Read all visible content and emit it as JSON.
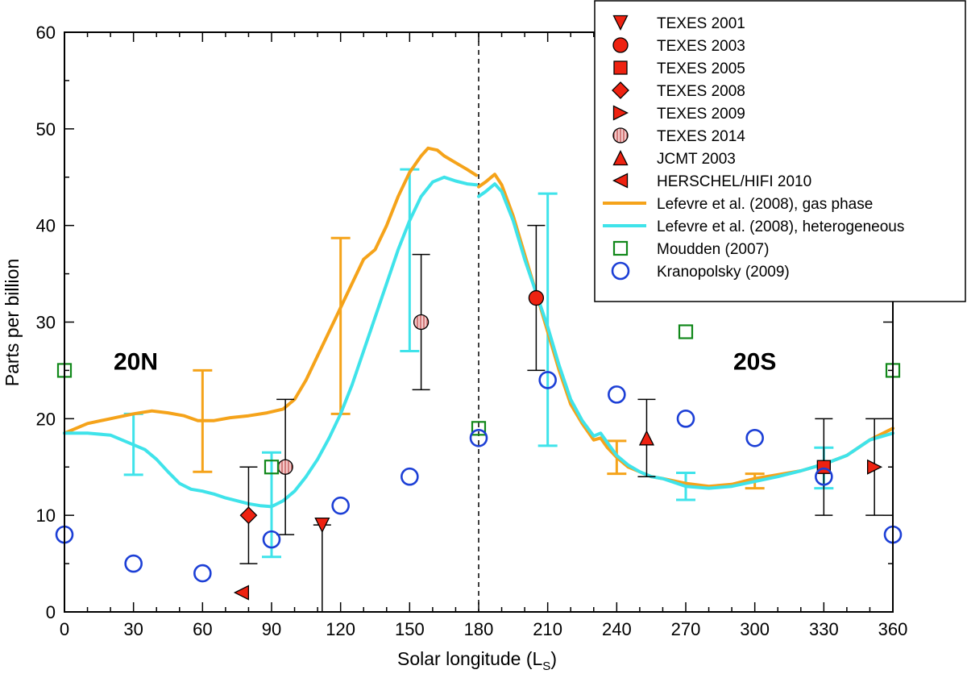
{
  "chart_data": {
    "type": "scatter",
    "xlabel": "Solar longitude (L",
    "xlabel_sub": "S",
    "xlabel_close": ")",
    "ylabel": "Parts per billion",
    "xlim": [
      0,
      360
    ],
    "ylim": [
      0,
      60
    ],
    "xticks": [
      "0",
      "30",
      "60",
      "90",
      "120",
      "150",
      "180",
      "210",
      "240",
      "270",
      "300",
      "330",
      "360"
    ],
    "yticks": [
      "0",
      "10",
      "20",
      "30",
      "40",
      "50",
      "60"
    ],
    "grid": false,
    "legend_position": "top-right",
    "divider_x": 180,
    "region_labels": [
      {
        "text": "20N",
        "x": 31,
        "y": 26
      },
      {
        "text": "20S",
        "x": 300,
        "y": 26
      }
    ],
    "colors": {
      "marker_fill": "#ee2211",
      "hatched_fill": "#f4c8c8",
      "gas_phase": "#f5a31a",
      "heterogeneous": "#3fe3ea",
      "moudden": "#11881a",
      "kranopolsky": "#1c3fd6",
      "errorbar": "#000000"
    },
    "point_series": [
      {
        "name": "TEXES 2001",
        "marker": "triangle-down",
        "points": [
          {
            "x": 112,
            "y": 9,
            "err_low": 0,
            "err_high": 9
          }
        ]
      },
      {
        "name": "TEXES 2003",
        "marker": "circle",
        "points": [
          {
            "x": 205,
            "y": 32.5,
            "err_low": 25,
            "err_high": 40
          }
        ]
      },
      {
        "name": "TEXES 2005",
        "marker": "square",
        "points": [
          {
            "x": 330,
            "y": 15,
            "err_low": 10,
            "err_high": 20
          }
        ]
      },
      {
        "name": "TEXES 2008",
        "marker": "diamond",
        "points": [
          {
            "x": 80,
            "y": 10,
            "err_low": 5,
            "err_high": 15
          }
        ]
      },
      {
        "name": "TEXES 2009",
        "marker": "triangle-right",
        "points": [
          {
            "x": 352,
            "y": 15,
            "err_low": 10,
            "err_high": 20
          }
        ]
      },
      {
        "name": "TEXES 2014",
        "marker": "circle-hatched",
        "points": [
          {
            "x": 96,
            "y": 15,
            "err_low": 8,
            "err_high": 22
          },
          {
            "x": 155,
            "y": 30,
            "err_low": 23,
            "err_high": 37
          }
        ]
      },
      {
        "name": "JCMT 2003",
        "marker": "triangle-up",
        "points": [
          {
            "x": 253,
            "y": 18,
            "err_low": 14,
            "err_high": 22
          }
        ]
      },
      {
        "name": "HERSCHEL/HIFI 2010",
        "marker": "triangle-left",
        "points": [
          {
            "x": 77,
            "y": 2
          }
        ]
      },
      {
        "name": "Moudden (2007)",
        "marker": "open-square",
        "points": [
          {
            "x": 0,
            "y": 25
          },
          {
            "x": 90,
            "y": 15
          },
          {
            "x": 180,
            "y": 19
          },
          {
            "x": 270,
            "y": 29
          },
          {
            "x": 360,
            "y": 25
          }
        ]
      },
      {
        "name": "Kranopolsky (2009)",
        "marker": "open-circle",
        "points": [
          {
            "x": 0,
            "y": 8
          },
          {
            "x": 30,
            "y": 5
          },
          {
            "x": 60,
            "y": 4
          },
          {
            "x": 90,
            "y": 7.5
          },
          {
            "x": 120,
            "y": 11
          },
          {
            "x": 150,
            "y": 14
          },
          {
            "x": 180,
            "y": 18
          },
          {
            "x": 210,
            "y": 24
          },
          {
            "x": 240,
            "y": 22.5
          },
          {
            "x": 270,
            "y": 20
          },
          {
            "x": 300,
            "y": 18
          },
          {
            "x": 330,
            "y": 14
          },
          {
            "x": 360,
            "y": 8
          }
        ]
      }
    ],
    "line_series": [
      {
        "name": "Lefevre et al. (2008), gas phase",
        "segments": [
          [
            [
              0,
              18.5
            ],
            [
              10,
              19.5
            ],
            [
              20,
              20
            ],
            [
              30,
              20.5
            ],
            [
              38,
              20.8
            ],
            [
              45,
              20.6
            ],
            [
              52,
              20.3
            ],
            [
              58,
              19.8
            ],
            [
              65,
              19.8
            ],
            [
              72,
              20.1
            ],
            [
              80,
              20.3
            ],
            [
              88,
              20.6
            ],
            [
              95,
              21
            ],
            [
              100,
              22
            ],
            [
              105,
              24
            ],
            [
              110,
              26.5
            ],
            [
              115,
              29
            ],
            [
              120,
              31.5
            ],
            [
              125,
              34
            ],
            [
              130,
              36.5
            ],
            [
              135,
              37.5
            ],
            [
              140,
              40
            ],
            [
              145,
              43
            ],
            [
              150,
              45.5
            ],
            [
              155,
              47.2
            ],
            [
              158,
              48
            ],
            [
              162,
              47.8
            ],
            [
              165,
              47.2
            ],
            [
              170,
              46.5
            ],
            [
              175,
              45.8
            ],
            [
              179,
              45.2
            ]
          ],
          [
            [
              180,
              44
            ],
            [
              183,
              44.5
            ],
            [
              187,
              45.3
            ],
            [
              190,
              44.2
            ],
            [
              195,
              41
            ],
            [
              200,
              37
            ],
            [
              205,
              33
            ],
            [
              210,
              29
            ],
            [
              215,
              25
            ],
            [
              220,
              21.5
            ],
            [
              225,
              19.5
            ],
            [
              230,
              17.8
            ],
            [
              233,
              18
            ],
            [
              236,
              17
            ],
            [
              240,
              16
            ],
            [
              245,
              15
            ],
            [
              250,
              14.5
            ],
            [
              255,
              14
            ],
            [
              260,
              13.8
            ],
            [
              270,
              13.3
            ],
            [
              280,
              13
            ],
            [
              290,
              13.2
            ],
            [
              300,
              13.8
            ],
            [
              310,
              14.2
            ],
            [
              320,
              14.6
            ],
            [
              330,
              15.3
            ],
            [
              340,
              16.2
            ],
            [
              350,
              17.8
            ],
            [
              360,
              19
            ]
          ]
        ]
      },
      {
        "name": "Lefevre et al. (2008), heterogeneous",
        "segments": [
          [
            [
              0,
              18.5
            ],
            [
              10,
              18.5
            ],
            [
              20,
              18.3
            ],
            [
              25,
              17.8
            ],
            [
              30,
              17.3
            ],
            [
              35,
              16.8
            ],
            [
              40,
              15.8
            ],
            [
              45,
              14.5
            ],
            [
              50,
              13.3
            ],
            [
              55,
              12.7
            ],
            [
              60,
              12.5
            ],
            [
              65,
              12.2
            ],
            [
              70,
              11.8
            ],
            [
              75,
              11.5
            ],
            [
              80,
              11.2
            ],
            [
              85,
              11
            ],
            [
              90,
              10.9
            ],
            [
              95,
              11.5
            ],
            [
              100,
              12.5
            ],
            [
              105,
              14
            ],
            [
              110,
              15.8
            ],
            [
              115,
              18
            ],
            [
              120,
              20.5
            ],
            [
              125,
              23.5
            ],
            [
              130,
              27
            ],
            [
              135,
              30.5
            ],
            [
              140,
              34
            ],
            [
              145,
              37.5
            ],
            [
              150,
              40.5
            ],
            [
              155,
              43
            ],
            [
              160,
              44.5
            ],
            [
              165,
              45
            ],
            [
              170,
              44.6
            ],
            [
              175,
              44.3
            ],
            [
              179,
              44.2
            ]
          ],
          [
            [
              180,
              43
            ],
            [
              183,
              43.5
            ],
            [
              187,
              44.3
            ],
            [
              190,
              43.5
            ],
            [
              195,
              40.5
            ],
            [
              200,
              36.5
            ],
            [
              205,
              33
            ],
            [
              210,
              29.5
            ],
            [
              215,
              25.5
            ],
            [
              220,
              22
            ],
            [
              225,
              19.8
            ],
            [
              230,
              18.2
            ],
            [
              233,
              18.5
            ],
            [
              236,
              17.5
            ],
            [
              240,
              16.2
            ],
            [
              245,
              15.2
            ],
            [
              250,
              14.5
            ],
            [
              255,
              14
            ],
            [
              260,
              13.8
            ],
            [
              270,
              13
            ],
            [
              280,
              12.8
            ],
            [
              290,
              13
            ],
            [
              300,
              13.5
            ],
            [
              310,
              14
            ],
            [
              320,
              14.6
            ],
            [
              330,
              15.3
            ],
            [
              340,
              16.2
            ],
            [
              350,
              17.8
            ],
            [
              360,
              18.5
            ]
          ]
        ]
      }
    ],
    "model_errorbars": [
      {
        "series": "gas_phase",
        "x": 60,
        "low": 14.5,
        "high": 25
      },
      {
        "series": "gas_phase",
        "x": 120,
        "low": 20.5,
        "high": 38.7
      },
      {
        "series": "gas_phase",
        "x": 240,
        "low": 14.3,
        "high": 17.7
      },
      {
        "series": "gas_phase",
        "x": 300,
        "low": 12.8,
        "high": 14.3
      },
      {
        "series": "heterogeneous",
        "x": 30,
        "low": 14.2,
        "high": 20.5
      },
      {
        "series": "heterogeneous",
        "x": 90,
        "low": 5.7,
        "high": 16.5
      },
      {
        "series": "heterogeneous",
        "x": 150,
        "low": 27,
        "high": 45.8
      },
      {
        "series": "heterogeneous",
        "x": 210,
        "low": 17.2,
        "high": 43.3
      },
      {
        "series": "heterogeneous",
        "x": 270,
        "low": 11.6,
        "high": 14.4
      },
      {
        "series": "heterogeneous",
        "x": 330,
        "low": 12.8,
        "high": 17
      }
    ],
    "legend": [
      {
        "label": "TEXES 2001",
        "kind": "marker",
        "marker": "triangle-down"
      },
      {
        "label": "TEXES 2003",
        "kind": "marker",
        "marker": "circle"
      },
      {
        "label": "TEXES 2005",
        "kind": "marker",
        "marker": "square"
      },
      {
        "label": "TEXES 2008",
        "kind": "marker",
        "marker": "diamond"
      },
      {
        "label": "TEXES 2009",
        "kind": "marker",
        "marker": "triangle-right"
      },
      {
        "label": "TEXES 2014",
        "kind": "marker",
        "marker": "circle-hatched"
      },
      {
        "label": "JCMT 2003",
        "kind": "marker",
        "marker": "triangle-up"
      },
      {
        "label": "HERSCHEL/HIFI 2010",
        "kind": "marker",
        "marker": "triangle-left"
      },
      {
        "label": "Lefevre et al. (2008), gas phase",
        "kind": "line",
        "series": "gas_phase"
      },
      {
        "label": "Lefevre et al. (2008), heterogeneous",
        "kind": "line",
        "series": "heterogeneous"
      },
      {
        "label": "Moudden (2007)",
        "kind": "marker",
        "marker": "open-square"
      },
      {
        "label": "Kranopolsky (2009)",
        "kind": "marker",
        "marker": "open-circle"
      }
    ]
  }
}
